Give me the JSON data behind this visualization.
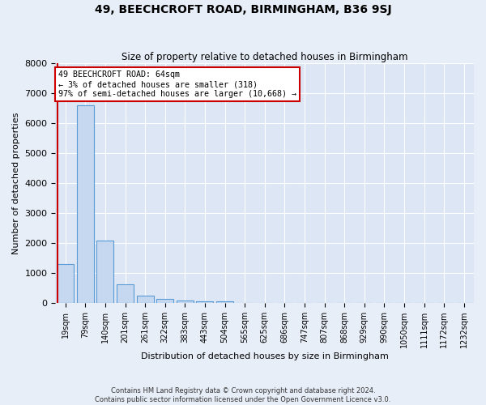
{
  "title": "49, BEECHCROFT ROAD, BIRMINGHAM, B36 9SJ",
  "subtitle": "Size of property relative to detached houses in Birmingham",
  "xlabel": "Distribution of detached houses by size in Birmingham",
  "ylabel": "Number of detached properties",
  "footer_line1": "Contains HM Land Registry data © Crown copyright and database right 2024.",
  "footer_line2": "Contains public sector information licensed under the Open Government Licence v3.0.",
  "bin_labels": [
    "19sqm",
    "79sqm",
    "140sqm",
    "201sqm",
    "261sqm",
    "322sqm",
    "383sqm",
    "443sqm",
    "504sqm",
    "565sqm",
    "625sqm",
    "686sqm",
    "747sqm",
    "807sqm",
    "868sqm",
    "929sqm",
    "990sqm",
    "1050sqm",
    "1111sqm",
    "1172sqm",
    "1232sqm"
  ],
  "bar_values": [
    1300,
    6600,
    2100,
    620,
    260,
    140,
    100,
    70,
    70,
    0,
    0,
    0,
    0,
    0,
    0,
    0,
    0,
    0,
    0,
    0,
    0
  ],
  "bar_color": "#c5d8f0",
  "bar_edge_color": "#5b9bd5",
  "annotation_text_line1": "49 BEECHCROFT ROAD: 64sqm",
  "annotation_text_line2": "← 3% of detached houses are smaller (318)",
  "annotation_text_line3": "97% of semi-detached houses are larger (10,668) →",
  "annotation_box_color": "#cc0000",
  "ylim": [
    0,
    8000
  ],
  "yticks": [
    0,
    1000,
    2000,
    3000,
    4000,
    5000,
    6000,
    7000,
    8000
  ],
  "bg_color": "#e8eef8",
  "plot_bg_color": "#dce6f5",
  "grid_color": "#ffffff",
  "red_line_color": "#cc0000",
  "red_line_x": -0.38
}
